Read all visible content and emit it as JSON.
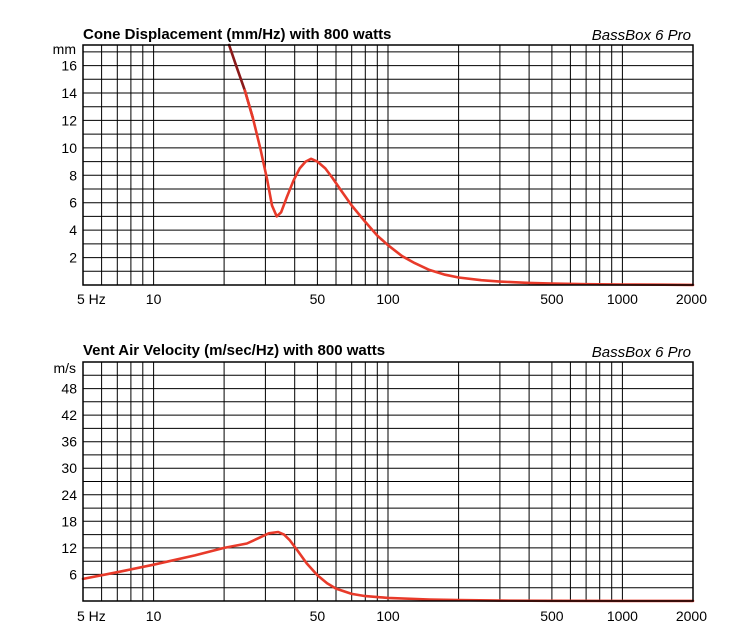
{
  "chart_data": [
    {
      "type": "line",
      "title": "Cone Displacement (mm/Hz) with 800 watts",
      "brand": "BassBox 6 Pro",
      "ylabel": "mm",
      "xscale": "log",
      "xlim": [
        5,
        2000
      ],
      "ylim": [
        0,
        17.5
      ],
      "x_tick_labels": [
        {
          "v": 5,
          "label": "5 Hz"
        },
        {
          "v": 10,
          "label": "10"
        },
        {
          "v": 50,
          "label": "50"
        },
        {
          "v": 100,
          "label": "100"
        },
        {
          "v": 500,
          "label": "500"
        },
        {
          "v": 1000,
          "label": "1000"
        },
        {
          "v": 2000,
          "label": "2000"
        }
      ],
      "y_tick_labels": [
        2,
        4,
        6,
        8,
        10,
        12,
        14,
        16
      ],
      "y_grid_step": 1,
      "grid": true,
      "series": [
        {
          "color": "#e83a2a",
          "segments": [
            {
              "color": "#8b1a1a",
              "x_max": 26
            },
            {
              "color": "#e83a2a",
              "x_min": 26
            }
          ],
          "x": [
            21.0,
            22.5,
            24.5,
            26.5,
            28.5,
            30.5,
            32.0,
            33.5,
            35.0,
            37.0,
            39.5,
            42.0,
            44.5,
            47.0,
            50.0,
            54.0,
            58.0,
            63.0,
            70.0,
            80.0,
            90.0,
            100.0,
            115.0,
            130.0,
            150.0,
            175.0,
            200.0,
            250.0,
            300.0,
            400.0,
            500.0,
            700.0,
            1000.0,
            1500.0,
            2000.0
          ],
          "y": [
            17.5,
            16.0,
            14.2,
            12.2,
            10.0,
            7.7,
            5.8,
            5.0,
            5.3,
            6.4,
            7.6,
            8.5,
            9.0,
            9.2,
            9.0,
            8.5,
            7.8,
            6.9,
            5.8,
            4.6,
            3.6,
            2.9,
            2.1,
            1.6,
            1.1,
            0.75,
            0.55,
            0.35,
            0.25,
            0.15,
            0.1,
            0.06,
            0.04,
            0.02,
            0.01
          ]
        }
      ]
    },
    {
      "type": "line",
      "title": "Vent Air Velocity (m/sec/Hz) with 800 watts",
      "brand": "BassBox 6 Pro",
      "ylabel": "m/s",
      "xscale": "log",
      "xlim": [
        5,
        2000
      ],
      "ylim": [
        0,
        54
      ],
      "x_tick_labels": [
        {
          "v": 5,
          "label": "5 Hz"
        },
        {
          "v": 10,
          "label": "10"
        },
        {
          "v": 50,
          "label": "50"
        },
        {
          "v": 100,
          "label": "100"
        },
        {
          "v": 500,
          "label": "500"
        },
        {
          "v": 1000,
          "label": "1000"
        },
        {
          "v": 2000,
          "label": "2000"
        }
      ],
      "y_tick_labels": [
        6,
        12,
        18,
        24,
        30,
        36,
        42,
        48
      ],
      "y_grid_step": 3,
      "grid": true,
      "series": [
        {
          "color": "#e83a2a",
          "segments": [],
          "x": [
            5.0,
            7.0,
            10.0,
            15.0,
            20.0,
            25.0,
            28.0,
            31.0,
            34.0,
            36.0,
            38.0,
            41.0,
            45.0,
            50.0,
            55.0,
            60.0,
            70.0,
            80.0,
            100.0,
            150.0,
            200.0,
            300.0,
            500.0,
            1000.0,
            2000.0
          ],
          "y": [
            5.0,
            6.5,
            8.2,
            10.3,
            12.0,
            13.0,
            14.2,
            15.3,
            15.6,
            15.0,
            13.8,
            11.5,
            8.5,
            5.8,
            4.0,
            2.8,
            1.6,
            1.1,
            0.7,
            0.35,
            0.2,
            0.1,
            0.05,
            0.03,
            0.02
          ]
        }
      ]
    }
  ]
}
